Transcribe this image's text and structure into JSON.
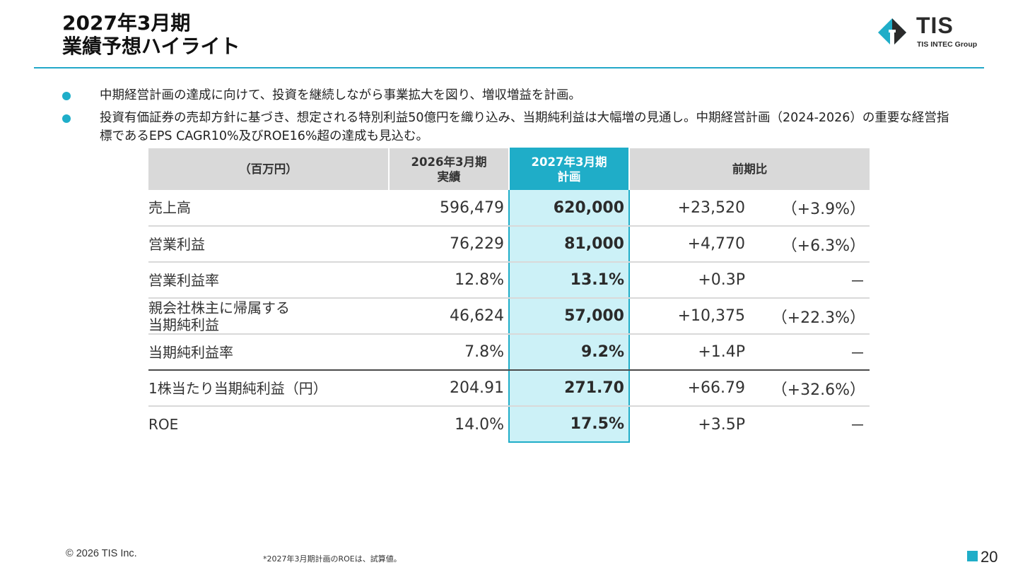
{
  "header": {
    "title_line1": "2027年3月期",
    "title_line2": "業績予想ハイライト",
    "logo_name": "TIS",
    "logo_sub": "TIS INTEC Group"
  },
  "bullets": [
    "中期経営計画の達成に向けて、投資を継続しながら事業拡大を図り、増収増益を計画。",
    "投資有価証券の売却方針に基づき、想定される特別利益50億円を織り込み、当期純利益は大幅増の見通し。中期経営計画（2024-2026）の重要な経営指標であるEPS CAGR10%及びROE16%超の達成も見込む。"
  ],
  "table": {
    "headers": {
      "unit": "（百万円）",
      "actual_line1": "2026年3月期",
      "actual_line2": "実績",
      "plan_line1": "2027年3月期",
      "plan_line2": "計画",
      "yoy": "前期比"
    },
    "rows": [
      {
        "label": "売上高",
        "actual": "596,479",
        "plan": "620,000",
        "diff": "+23,520",
        "pct": "（+3.9%）"
      },
      {
        "label": "営業利益",
        "actual": "76,229",
        "plan": "81,000",
        "diff": "+4,770",
        "pct": "（+6.3%）"
      },
      {
        "label": "営業利益率",
        "actual": "12.8%",
        "plan": "13.1%",
        "diff": "+0.3P",
        "pct": "－"
      },
      {
        "label_line1": "親会社株主に帰属する",
        "label_line2": "当期純利益",
        "actual": "46,624",
        "plan": "57,000",
        "diff": "+10,375",
        "pct": "（+22.3%）"
      },
      {
        "label": "当期純利益率",
        "actual": "7.8%",
        "plan": "9.2%",
        "diff": "+1.4P",
        "pct": "－"
      },
      {
        "label": "1株当たり当期純利益（円）",
        "actual": "204.91",
        "plan": "271.70",
        "diff": "+66.79",
        "pct": "（+32.6%）"
      },
      {
        "label": "ROE",
        "actual": "14.0%",
        "plan": "17.5%",
        "diff": "+3.5P",
        "pct": "－"
      }
    ]
  },
  "footer": {
    "copyright": "© 2026 TIS Inc.",
    "footnote": "*2027年3月期計画のROEは、試算値。",
    "page_number": "20"
  },
  "colors": {
    "accent": "#1fadc8",
    "plan_fill": "#ccf1f7",
    "header_fill": "#d9d9d9"
  }
}
